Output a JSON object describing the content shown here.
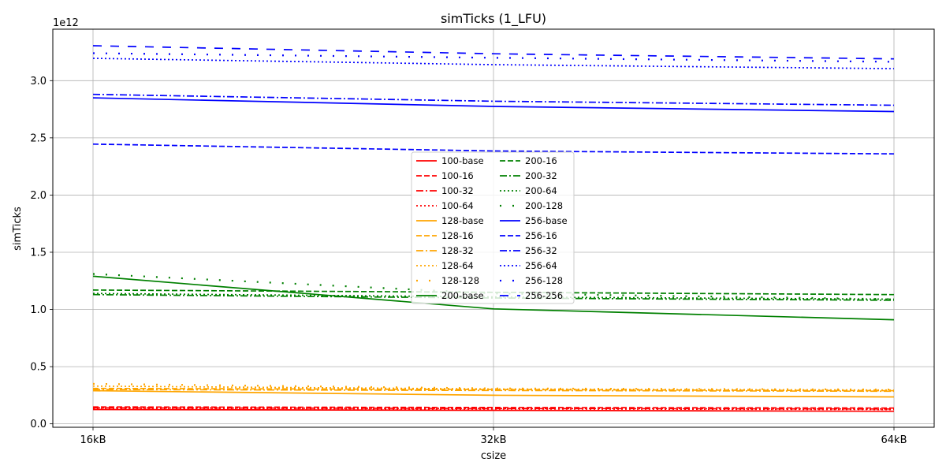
{
  "chart_data": {
    "type": "line",
    "title": "simTicks (1_LFU)",
    "xlabel": "csize",
    "ylabel": "simTicks",
    "y_scale_label": "1e12",
    "x": [
      "16kB",
      "32kB",
      "64kB"
    ],
    "xticks": [
      "16kB",
      "32kB",
      "64kB"
    ],
    "yticks": [
      "0.0",
      "0.5",
      "1.0",
      "1.5",
      "2.0",
      "2.5",
      "3.0"
    ],
    "ytick_values": [
      0.0,
      0.5,
      1.0,
      1.5,
      2.0,
      2.5,
      3.0
    ],
    "ylim": [
      -0.03,
      3.45
    ],
    "grid": true,
    "legend_placement": "center",
    "series": [
      {
        "name": "100-base",
        "color": "#ff0000",
        "style": "solid",
        "values": [
          0.125,
          0.118,
          0.11
        ]
      },
      {
        "name": "100-16",
        "color": "#ff0000",
        "style": "dashed",
        "values": [
          0.148,
          0.143,
          0.138
        ]
      },
      {
        "name": "100-32",
        "color": "#ff0000",
        "style": "dashdot",
        "values": [
          0.14,
          0.135,
          0.13
        ]
      },
      {
        "name": "100-64",
        "color": "#ff0000",
        "style": "dotted",
        "values": [
          0.135,
          0.13,
          0.125
        ]
      },
      {
        "name": "128-base",
        "color": "#ffa500",
        "style": "solid",
        "values": [
          0.29,
          0.25,
          0.235
        ]
      },
      {
        "name": "128-16",
        "color": "#ffa500",
        "style": "dashed",
        "values": [
          0.31,
          0.3,
          0.29
        ]
      },
      {
        "name": "128-32",
        "color": "#ffa500",
        "style": "dashdot",
        "values": [
          0.3,
          0.292,
          0.285
        ]
      },
      {
        "name": "128-64",
        "color": "#ffa500",
        "style": "dotted",
        "values": [
          0.33,
          0.305,
          0.295
        ]
      },
      {
        "name": "128-128",
        "color": "#ffa500",
        "style": "sparse",
        "values": [
          0.35,
          0.31,
          0.3
        ]
      },
      {
        "name": "200-base",
        "color": "#008000",
        "style": "solid",
        "values": [
          1.29,
          1.005,
          0.91
        ]
      },
      {
        "name": "200-16",
        "color": "#008000",
        "style": "dashed",
        "values": [
          1.17,
          1.15,
          1.13
        ]
      },
      {
        "name": "200-32",
        "color": "#008000",
        "style": "dashdot",
        "values": [
          1.13,
          1.1,
          1.08
        ]
      },
      {
        "name": "200-64",
        "color": "#008000",
        "style": "dotted",
        "values": [
          1.14,
          1.11,
          1.09
        ]
      },
      {
        "name": "200-128",
        "color": "#008000",
        "style": "sparse",
        "values": [
          1.31,
          1.14,
          1.09
        ]
      },
      {
        "name": "256-base",
        "color": "#0000ff",
        "style": "solid",
        "values": [
          2.85,
          2.775,
          2.73
        ]
      },
      {
        "name": "256-16",
        "color": "#0000ff",
        "style": "dashed",
        "values": [
          2.445,
          2.385,
          2.36
        ]
      },
      {
        "name": "256-32",
        "color": "#0000ff",
        "style": "dashdot",
        "values": [
          2.88,
          2.82,
          2.785
        ]
      },
      {
        "name": "256-64",
        "color": "#0000ff",
        "style": "dotted",
        "values": [
          3.195,
          3.14,
          3.105
        ]
      },
      {
        "name": "256-128",
        "color": "#0000ff",
        "style": "sparse",
        "values": [
          3.24,
          3.2,
          3.165
        ]
      },
      {
        "name": "256-256",
        "color": "#0000ff",
        "style": "longdash",
        "values": [
          3.305,
          3.235,
          3.19
        ]
      }
    ]
  }
}
